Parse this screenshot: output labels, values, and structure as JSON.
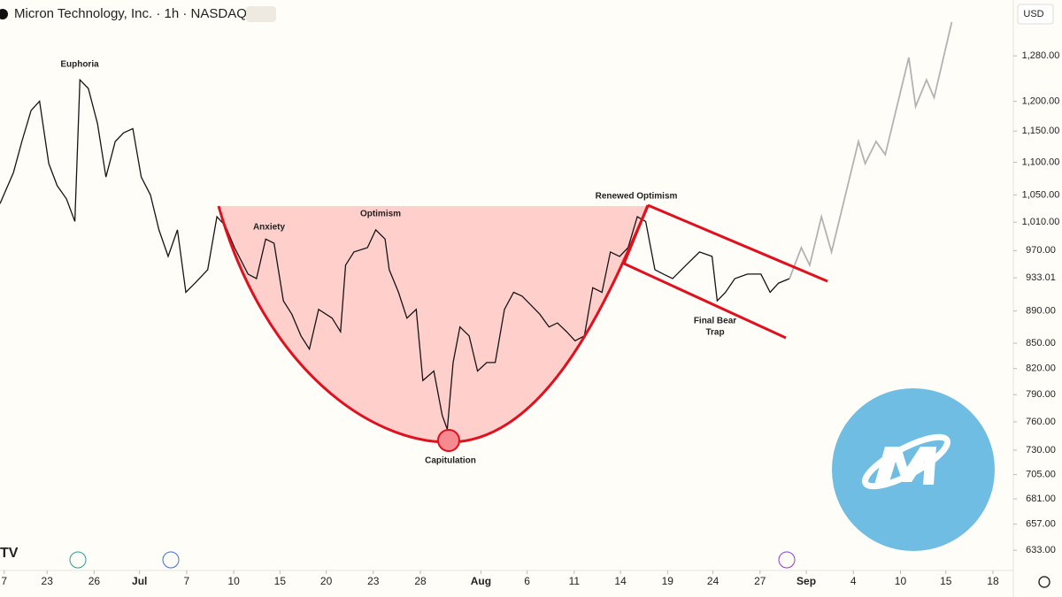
{
  "chart_data": {
    "type": "line",
    "title": "Micron Technology, Inc. · 1h · NASDAQ",
    "currency": "USD",
    "log_scale": true,
    "xlim": [
      0,
      120
    ],
    "ylim": [
      615,
      1386
    ],
    "xticks": [
      {
        "value": 0.5,
        "label": "7"
      },
      {
        "value": 5.6,
        "label": "23"
      },
      {
        "value": 11.2,
        "label": "26"
      },
      {
        "value": 16.6,
        "label": "Jul"
      },
      {
        "value": 22.2,
        "label": "7"
      },
      {
        "value": 27.8,
        "label": "10"
      },
      {
        "value": 33.3,
        "label": "15"
      },
      {
        "value": 38.8,
        "label": "20"
      },
      {
        "value": 44.4,
        "label": "23"
      },
      {
        "value": 50,
        "label": "28"
      },
      {
        "value": 57.2,
        "label": "Aug"
      },
      {
        "value": 62.7,
        "label": "6"
      },
      {
        "value": 68.3,
        "label": "11"
      },
      {
        "value": 73.8,
        "label": "14"
      },
      {
        "value": 79.4,
        "label": "19"
      },
      {
        "value": 84.8,
        "label": "24"
      },
      {
        "value": 90.4,
        "label": "27"
      },
      {
        "value": 95.9,
        "label": "Sep"
      },
      {
        "value": 101.5,
        "label": "4"
      },
      {
        "value": 107.1,
        "label": "10"
      },
      {
        "value": 112.5,
        "label": "15"
      },
      {
        "value": 118.1,
        "label": "18"
      }
    ],
    "yticks": [
      {
        "value": 1280,
        "label": "1,280.00"
      },
      {
        "value": 1200,
        "label": "1,200.00"
      },
      {
        "value": 1150,
        "label": "1,150.00"
      },
      {
        "value": 1100,
        "label": "1,100.00"
      },
      {
        "value": 1050,
        "label": "1,050.00"
      },
      {
        "value": 1010,
        "label": "1,010.00"
      },
      {
        "value": 970,
        "label": "970.00"
      },
      933.01,
      {
        "value": 890,
        "label": "890.00"
      },
      {
        "value": 850,
        "label": "850.00"
      },
      {
        "value": 820,
        "label": "820.00"
      },
      {
        "value": 790,
        "label": "790.00"
      },
      {
        "value": 760,
        "label": "760.00"
      },
      {
        "value": 730,
        "label": "730.00"
      },
      {
        "value": 705,
        "label": "705.00"
      },
      {
        "value": 681,
        "label": "681.00"
      },
      {
        "value": 657,
        "label": "657.00"
      },
      {
        "value": 633,
        "label": "633.00"
      }
    ],
    "series": [
      {
        "color": "#151515",
        "x": [
          0,
          1.6,
          2.6,
          3.7,
          4.7,
          5.8,
          6.8,
          7.9,
          8.9,
          9.5,
          10.5,
          11.6,
          12.6,
          13.7,
          14.7,
          15.8,
          16.8,
          17.9,
          18.9,
          20,
          21.1,
          22.1,
          23.2,
          24.7,
          25.8,
          26.8,
          27.9,
          29.5,
          30.5,
          31.6,
          32.6,
          33.7,
          34.7,
          35.8,
          36.8,
          37.9,
          39.5,
          40.5,
          41.1,
          42.1,
          43.7,
          44.7,
          45.8,
          46.3,
          47.4,
          48.4,
          49.5,
          50.3,
          51.6,
          52.6,
          53.2,
          53.9,
          54.7,
          55.8,
          56.8,
          57.9,
          58.9,
          60,
          61.1,
          62.1,
          63.2,
          64.2,
          65.3,
          66.3,
          67.4,
          68.4,
          69.5,
          70.5,
          71.6,
          72.6,
          73.7,
          74.7,
          75.8,
          76.8,
          77.9,
          78.9,
          80,
          81.6,
          83.2,
          84.7,
          85.3,
          86.3,
          87.4,
          88.9,
          90.5,
          91.6,
          92.6,
          93.9
        ],
        "values": [
          1037,
          1084,
          1133,
          1184,
          1200,
          1098,
          1064,
          1044,
          1011,
          1237,
          1222,
          1162,
          1077,
          1133,
          1147,
          1154,
          1077,
          1050,
          999,
          962,
          999,
          914,
          926,
          944,
          1018,
          1005,
          974,
          938,
          932,
          986,
          980,
          903,
          886,
          859,
          843,
          892,
          881,
          864,
          950,
          968,
          974,
          999,
          986,
          944,
          914,
          881,
          892,
          806,
          817,
          767,
          752,
          827,
          870,
          859,
          817,
          827,
          827,
          892,
          914,
          909,
          897,
          886,
          870,
          875,
          864,
          853,
          859,
          920,
          914,
          968,
          962,
          974,
          1018,
          1011,
          944,
          938,
          932,
          950,
          968,
          962,
          903,
          914,
          932,
          938,
          938,
          914,
          926,
          932
        ]
      },
      {
        "color": "#b3b3b3",
        "x": [
          93.9,
          95.3,
          96.3,
          97.7,
          98.9,
          102.1,
          102.9,
          104.2,
          105.3,
          108.1,
          108.9,
          110.2,
          111.1,
          113.2
        ],
        "values": [
          932,
          974,
          950,
          1018,
          968,
          1133,
          1098,
          1133,
          1112,
          1277,
          1191,
          1237,
          1206,
          1343
        ]
      }
    ],
    "annotations": [
      "Euphoria",
      "Anxiety",
      "Optimism",
      "Capitulation",
      "Renewed Optimism",
      "Final Bear",
      "Trap"
    ]
  }
}
